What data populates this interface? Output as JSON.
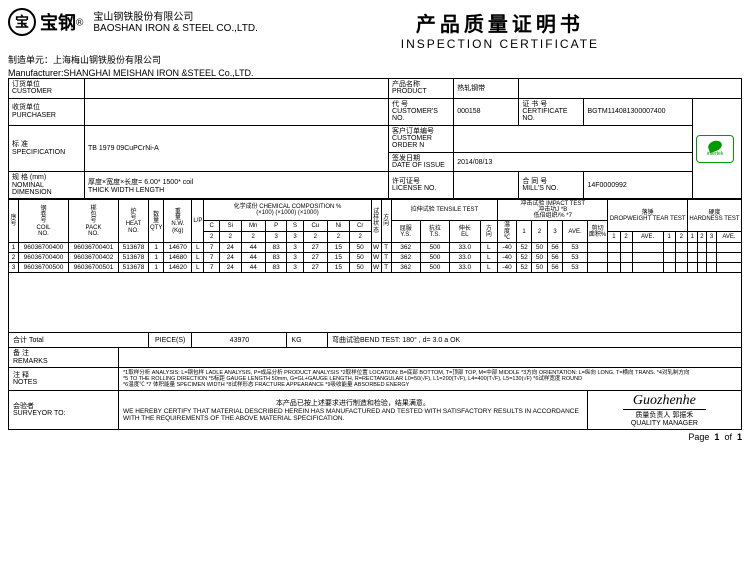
{
  "header": {
    "logo_cn": "宝",
    "logo_brand_suffix": "钢",
    "reg": "®",
    "company_cn": "宝山钢铁股份有限公司",
    "company_en": "BAOSHAN IRON & STEEL CO.,LTD.",
    "title_cn": "产品质量证明书",
    "title_en": "INSPECTION CERTIFICATE",
    "mfr_cn": "制造单元：上海梅山钢铁股份有限公司",
    "mfr_en": "Manufacturer:SHANGHAI MEISHAN IRON &STEEL Co.,LTD."
  },
  "meta": {
    "customer_l": "订货单位\nCUSTOMER",
    "purchaser_l": "收货单位\nPURCHASER",
    "spec_l": "标 准\nSPECIFICATION",
    "spec_v": "TB 1979 09CuPCrNi-A",
    "dim_l": "规 格 (mm)\nNOMINAL DIMENSION",
    "dim_desc": "厚度×宽度×长度=",
    "dim_desc_en": "THICK WIDTH LENGTH",
    "dim_v": "6.00* 1500* coil",
    "product_l": "产品名称\nPRODUCT",
    "product_v": "热轧钢带",
    "custno_l": "代 号\nCUSTOMER'S NO.",
    "custno_v": "000158",
    "certno_l": "证 书 号\nCERTIFICATE NO.",
    "certno_v": "BGTM114081300007400",
    "custorder_l": "客户订单编号\nCUSTOMER ORDER N",
    "date_l": "签发日期\nDATE OF ISSUE",
    "date_v": "2014/08/13",
    "license_l": "许可证号\nLICENSE NO.",
    "millno_l": "合 同 号\nMILL'S NO.",
    "millno_v": "14F0000992",
    "intertek": "intertek"
  },
  "cols": {
    "seq": "序\n号",
    "coil": "钢\n卷\n号\nCOIL\nNO.",
    "pack": "梆\n包\n号\nPACK\nNO.",
    "heat": "炉\n号\nHEAT\nNO.",
    "qty": "数\n量\nQTY",
    "nw": "重\n量\nN.W.\n(Kg)",
    "chem_group": "化学成份 CHEMICAL COMPOSITION %",
    "chem_sub": "(×100) (×1000) (×1000)",
    "chem": [
      "C",
      "Si",
      "Mn",
      "P",
      "S",
      "Cu",
      "Ni",
      "Cr"
    ],
    "chem_row2": [
      "2",
      "2",
      "2",
      "3",
      "3",
      "2",
      "2",
      "2"
    ],
    "dim_sym": "试\n样\n状\n态",
    "dir": "方\n向",
    "tensile_group": "拉伸试验 TENSILE TEST",
    "ys": "屈服\nY.S.",
    "ts": "抗拉\nT.S.",
    "el": "伸长\nEL",
    "unit_mpa": "MPa",
    "unit_pct": "%",
    "impact_group": "冲击试验 IMPACT TEST",
    "imp_sub": "冲击功J *B\n低倍组织/% *7",
    "temp": "温\n度\n℃",
    "i1": "1",
    "i2": "2",
    "i3": "3",
    "iave": "AVE.",
    "tear_group": "落锤\nDROPWEIGHT TEAR TEST",
    "hard_group": "硬度\nHARDNESS TEST"
  },
  "rows": [
    {
      "n": "1",
      "coil": "96036700400",
      "pack": "96036700401",
      "heat": "513678",
      "qty": "1",
      "nw": "14670",
      "c": "7",
      "si": "24",
      "mn": "44",
      "p": "83",
      "s": "3",
      "cu": "27",
      "ni": "15",
      "cr": "50",
      "st": "W",
      "dir": "T",
      "ys": "362",
      "ts": "500",
      "el": "33.0",
      "t": "-40",
      "v1": "52",
      "v2": "50",
      "v3": "56",
      "ave": "53"
    },
    {
      "n": "2",
      "coil": "96036700400",
      "pack": "96036700402",
      "heat": "513678",
      "qty": "1",
      "nw": "14680",
      "c": "7",
      "si": "24",
      "mn": "44",
      "p": "83",
      "s": "3",
      "cu": "27",
      "ni": "15",
      "cr": "50",
      "st": "W",
      "dir": "T",
      "ys": "362",
      "ts": "500",
      "el": "33.0",
      "t": "-40",
      "v1": "52",
      "v2": "50",
      "v3": "56",
      "ave": "53"
    },
    {
      "n": "3",
      "coil": "96036700500",
      "pack": "96036700501",
      "heat": "513678",
      "qty": "1",
      "nw": "14620",
      "c": "7",
      "si": "24",
      "mn": "44",
      "p": "83",
      "s": "3",
      "cu": "27",
      "ni": "15",
      "cr": "50",
      "st": "W",
      "dir": "T",
      "ys": "362",
      "ts": "500",
      "el": "33.0",
      "t": "-40",
      "v1": "52",
      "v2": "50",
      "v3": "56",
      "ave": "53"
    }
  ],
  "total": {
    "label": "合计 Total",
    "pcs_l": "PIECE(S)",
    "nw": "43970",
    "unit": "KG",
    "bend": "弯曲试验BEND TEST: 180° , d= 3.0 a OK"
  },
  "footer": {
    "remarks_l": "备 注\nREMARKS",
    "notes_l": "注 释\nNOTES",
    "notes_v": "*1取样分析 ANALYSIS: L=钢包样 LADLE ANALYSIS, P=成品分析 PRODUCT ANALYSIS  *2取样位置 LOCATION: B=底部 BOTTOM, T=顶部 TOP, M=中部 MIDDLE  *3方向 ORIENTATION: L=纵向 LONG. T=横向 TRANS.  *4对轧制方向\n*5 TO THE ROLLING DIRECTION  *5标距 GAUGE LENGTH 50mm, G=GL+GAUGE LENGTH, R=RECTANGULAR  L0=50(√F), L1=200(T√F), L4=400(T√F), L5=130(√F)  *6试样宽度 ROUND\n*6温度℃  *7 体积能量 SPECIMEN WIDTH  *8试样形态 FRACTURE APPEARANCE  *9吸收能量 ABSORBED ENERGY",
    "surv_l": "会验者\nSURVEYOR TO:",
    "surv_v": "WE HEREBY CERTIFY THAT MATERIAL DESCRIBED HEREIN HAS MANUFACTURED AND TESTED WITH SATISFACTORY RESULTS IN ACCORDANCE\nWITH THE REQUIREMENTS OF THE ABOVE MATERIAL SPECIFICATION.",
    "warranty": "本产品已按上述要求进行制造和检验，结果满意。",
    "signature": "Guozhenhe",
    "qm_cn": "质量负责人",
    "qm_en": "QUALITY MANAGER",
    "qm_sig": "郭振禾"
  },
  "page": {
    "label": "Page",
    "cur": "1",
    "of": "of",
    "total": "1"
  }
}
